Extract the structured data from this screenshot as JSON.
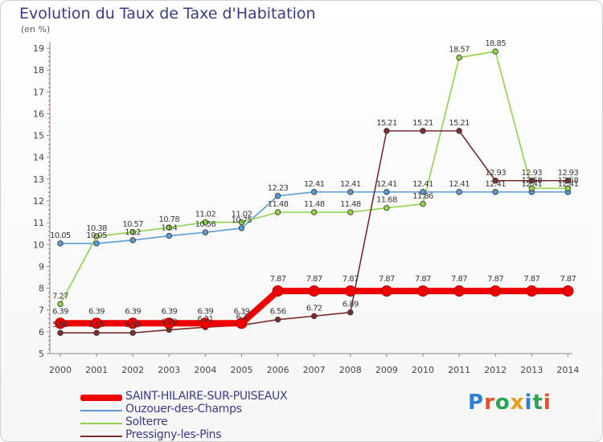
{
  "header": {
    "title": "Evolution du Taux de Taxe d'Habitation",
    "subtitle": "(en %)"
  },
  "logo": {
    "text": "Proxiti",
    "letter_colors": [
      "#2e7fd6",
      "#e0522f",
      "#2aa35a",
      "#e89a1c",
      "#2e7fd6",
      "#2aa35a",
      "#e0522f"
    ]
  },
  "chart_data": {
    "type": "line",
    "title": "Evolution du Taux de Taxe d'Habitation",
    "ylabel": "(en %)",
    "xlabel": "",
    "x": [
      "2000",
      "2001",
      "2002",
      "2003",
      "2004",
      "2005",
      "2006",
      "2007",
      "2008",
      "2009",
      "2010",
      "2011",
      "2012",
      "2013",
      "2014"
    ],
    "ylim": [
      5,
      19
    ],
    "yticks": [
      "5",
      "6",
      "7",
      "8",
      "9",
      "10",
      "11",
      "12",
      "13",
      "14",
      "15",
      "16",
      "17",
      "18",
      "19"
    ],
    "grid": false,
    "legend_position": "bottom-left",
    "series": [
      {
        "name": "SAINT-HILAIRE-SUR-PUISEAUX",
        "color": "#ee0000",
        "emphasis": true,
        "values": [
          6.39,
          6.39,
          6.39,
          6.39,
          6.39,
          6.39,
          7.87,
          7.87,
          7.87,
          7.87,
          7.87,
          7.87,
          7.87,
          7.87,
          7.87
        ],
        "labels": [
          "6.39",
          "6.39",
          "6.39",
          "6.39",
          "6.39",
          "6.39",
          "7.87",
          "7.87",
          "7.87",
          "7.87",
          "7.87",
          "7.87",
          "7.87",
          "7.87",
          "7.87"
        ]
      },
      {
        "name": "Ouzouer-des-Champs",
        "color": "#5b9bd5",
        "emphasis": false,
        "values": [
          10.05,
          10.05,
          10.2,
          10.4,
          10.56,
          10.75,
          12.23,
          12.41,
          12.41,
          12.41,
          12.41,
          12.41,
          12.41,
          12.41,
          12.41
        ],
        "labels": [
          "10.05",
          "10.05",
          "10.2",
          "10.4",
          "10.56",
          "10.75",
          "12.23",
          "12.41",
          "12.41",
          "12.41",
          "12.41",
          "12.41",
          "12.41",
          "12.41",
          "12.41"
        ]
      },
      {
        "name": "Solterre",
        "color": "#8fd44a",
        "emphasis": false,
        "values": [
          7.27,
          10.38,
          10.57,
          10.78,
          11.02,
          11.02,
          11.48,
          11.48,
          11.48,
          11.68,
          11.86,
          18.57,
          18.85,
          12.58,
          12.58
        ],
        "labels": [
          "7.27",
          "10.38",
          "10.57",
          "10.78",
          "11.02",
          "11.02",
          "11.48",
          "11.48",
          "11.48",
          "11.68",
          "11.86",
          "18.57",
          "18.85",
          "12.58",
          "12.58"
        ]
      },
      {
        "name": "Pressigny-les-Pins",
        "color": "#7a2e2e",
        "emphasis": false,
        "values": [
          5.95,
          5.95,
          5.95,
          6.09,
          6.21,
          6.3,
          6.56,
          6.72,
          6.89,
          15.21,
          15.21,
          15.21,
          12.93,
          12.93,
          12.93
        ],
        "labels": [
          "5.95",
          "5.95",
          "5.95",
          "6.09",
          "6.21",
          "6.3",
          "6.56",
          "6.72",
          "6.89",
          "15.21",
          "15.21",
          "15.21",
          "12.93",
          "12.93",
          "12.93"
        ]
      }
    ]
  }
}
